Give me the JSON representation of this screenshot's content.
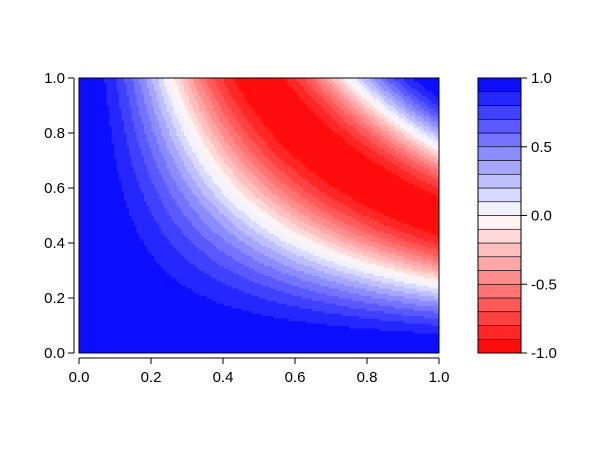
{
  "chart_data": {
    "type": "heatmap",
    "subtype": "filled-contour",
    "title": "",
    "xlabel": "",
    "ylabel": "",
    "xlim": [
      0,
      1
    ],
    "ylim": [
      0,
      1
    ],
    "x_ticks": [
      0.0,
      0.2,
      0.4,
      0.6,
      0.8,
      1.0
    ],
    "x_tick_labels": [
      "0.0",
      "0.2",
      "0.4",
      "0.6",
      "0.8",
      "1.0"
    ],
    "y_ticks": [
      0.0,
      0.2,
      0.4,
      0.6,
      0.8,
      1.0
    ],
    "y_tick_labels": [
      "0.0",
      "0.2",
      "0.4",
      "0.6",
      "0.8",
      "1.0"
    ],
    "grid": false,
    "z_range": [
      -1,
      1
    ],
    "levels": [
      -1.0,
      -0.9,
      -0.8,
      -0.7,
      -0.6,
      -0.5,
      -0.4,
      -0.3,
      -0.2,
      -0.1,
      0.0,
      0.1,
      0.2,
      0.3,
      0.4,
      0.5,
      0.6,
      0.7,
      0.8,
      0.9,
      1.0
    ],
    "color_low": "#ff0000",
    "color_mid": "#ffffff",
    "color_high": "#0000ff",
    "colorbar": {
      "placement": "right",
      "ticks": [
        1.0,
        0.5,
        0.0,
        -0.5,
        -1.0
      ],
      "tick_labels": [
        "1.0",
        "0.5",
        "0.0",
        "-0.5",
        "-1.0"
      ]
    },
    "approximate_field": "z = cos(2*pi*x*y)"
  }
}
